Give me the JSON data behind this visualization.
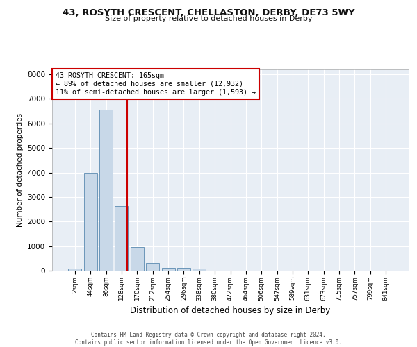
{
  "title_line1": "43, ROSYTH CRESCENT, CHELLASTON, DERBY, DE73 5WY",
  "title_line2": "Size of property relative to detached houses in Derby",
  "xlabel": "Distribution of detached houses by size in Derby",
  "ylabel": "Number of detached properties",
  "bar_color": "#c8d8e8",
  "bar_edge_color": "#5a8ab0",
  "categories": [
    "2sqm",
    "44sqm",
    "86sqm",
    "128sqm",
    "170sqm",
    "212sqm",
    "254sqm",
    "296sqm",
    "338sqm",
    "380sqm",
    "422sqm",
    "464sqm",
    "506sqm",
    "547sqm",
    "589sqm",
    "631sqm",
    "673sqm",
    "715sqm",
    "757sqm",
    "799sqm",
    "841sqm"
  ],
  "values": [
    80,
    3980,
    6560,
    2620,
    960,
    310,
    120,
    110,
    85,
    0,
    0,
    0,
    0,
    0,
    0,
    0,
    0,
    0,
    0,
    0,
    0
  ],
  "ylim": [
    0,
    8200
  ],
  "yticks": [
    0,
    1000,
    2000,
    3000,
    4000,
    5000,
    6000,
    7000,
    8000
  ],
  "annotation_title": "43 ROSYTH CRESCENT: 165sqm",
  "annotation_line1": "← 89% of detached houses are smaller (12,932)",
  "annotation_line2": "11% of semi-detached houses are larger (1,593) →",
  "annotation_box_color": "#ffffff",
  "annotation_box_edge_color": "#cc0000",
  "red_line_color": "#cc0000",
  "background_color": "#e8eef5",
  "grid_color": "#ffffff",
  "footer_line1": "Contains HM Land Registry data © Crown copyright and database right 2024.",
  "footer_line2": "Contains public sector information licensed under the Open Government Licence v3.0."
}
